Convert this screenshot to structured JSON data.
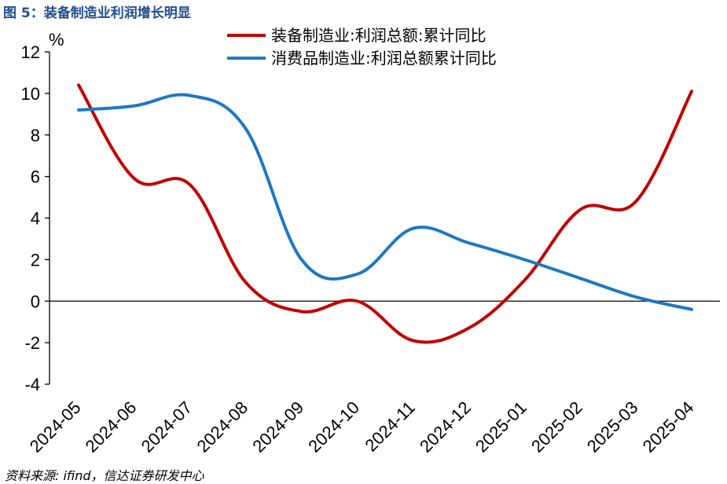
{
  "figure": {
    "title": "图 5：装备制造业利润增长明显",
    "source": "资料来源: ifind，信达证券研发中心"
  },
  "chart_data": {
    "type": "line",
    "title": "",
    "xlabel": "",
    "ylabel": "%",
    "ylim": [
      -4,
      12
    ],
    "yticks": [
      -4,
      -2,
      0,
      2,
      4,
      6,
      8,
      10,
      12
    ],
    "grid": false,
    "legend_position": "top-right",
    "categories": [
      "2024-05",
      "2024-06",
      "2024-07",
      "2024-08",
      "2024-09",
      "2024-10",
      "2024-11",
      "2024-12",
      "2025-01",
      "2025-02",
      "2025-03",
      "2025-04"
    ],
    "series": [
      {
        "name": "装备制造业:利润总额:累计同比",
        "color": "#c00000",
        "values": [
          10.4,
          5.9,
          5.6,
          0.9,
          -0.5,
          0.0,
          -1.9,
          -1.3,
          1.0,
          4.4,
          4.8,
          10.1
        ]
      },
      {
        "name": "消费品制造业:利润总额累计同比",
        "color": "#1f78c1",
        "values": [
          9.2,
          9.4,
          9.9,
          8.3,
          2.0,
          1.3,
          3.5,
          2.8,
          2.0,
          1.1,
          0.2,
          -0.4
        ]
      }
    ]
  }
}
